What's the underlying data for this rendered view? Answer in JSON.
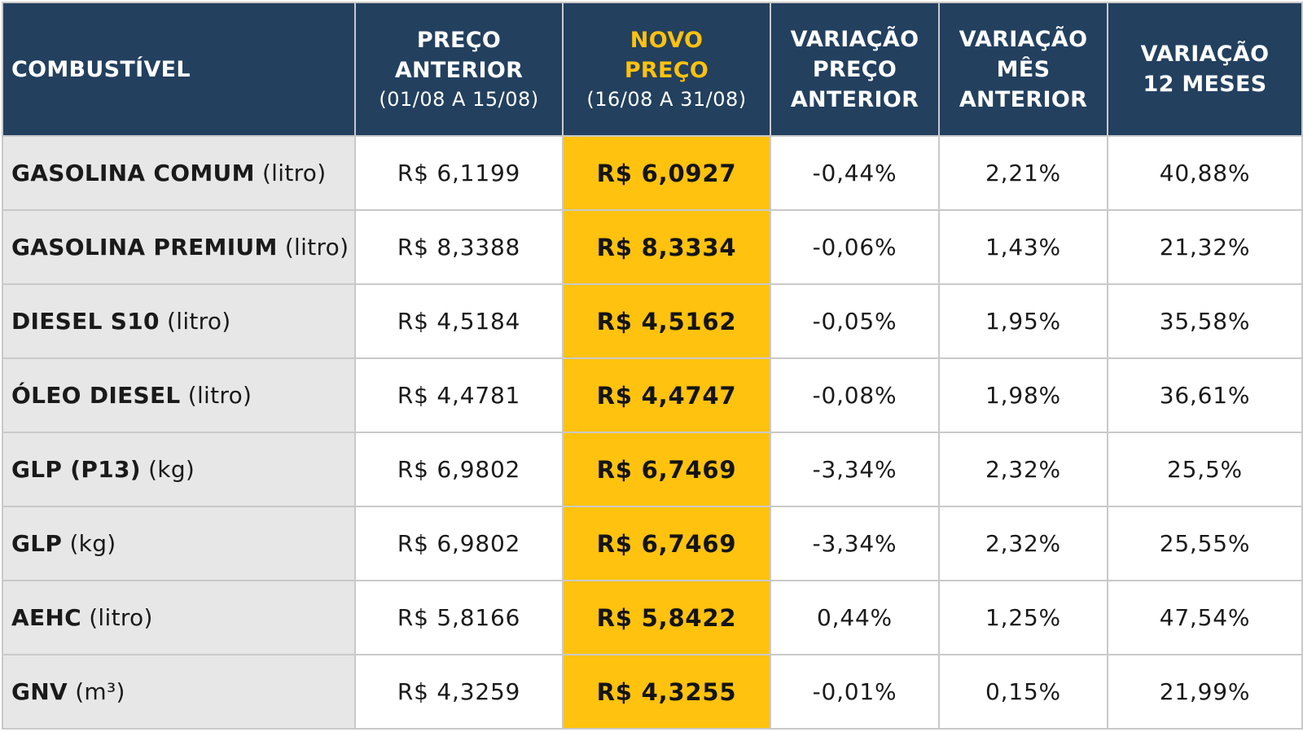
{
  "table": {
    "headers": {
      "fuel": "COMBUSTÍVEL",
      "previous_price": {
        "line1": "PREÇO",
        "line2": "ANTERIOR",
        "period": "(01/08 A 15/08)"
      },
      "new_price": {
        "line1": "NOVO",
        "line2": "PREÇO",
        "period": "(16/08 A 31/08)"
      },
      "var_previous_price": {
        "line1": "VARIAÇÃO",
        "line2": "PREÇO",
        "line3": "ANTERIOR"
      },
      "var_previous_month": {
        "line1": "VARIAÇÃO",
        "line2": "MÊS",
        "line3": "ANTERIOR"
      },
      "var_12_months": {
        "line1": "VARIAÇÃO",
        "line2": "12 MESES"
      }
    },
    "rows": [
      {
        "fuel": "GASOLINA COMUM",
        "unit": "(litro)",
        "previous_price": "R$ 6,1199",
        "new_price": "R$ 6,0927",
        "var_previous_price": "-0,44%",
        "var_previous_month": "2,21%",
        "var_12_months": "40,88%"
      },
      {
        "fuel": "GASOLINA PREMIUM",
        "unit": "(litro)",
        "previous_price": "R$ 8,3388",
        "new_price": "R$ 8,3334",
        "var_previous_price": "-0,06%",
        "var_previous_month": "1,43%",
        "var_12_months": "21,32%"
      },
      {
        "fuel": "DIESEL S10",
        "unit": "(litro)",
        "previous_price": "R$ 4,5184",
        "new_price": "R$ 4,5162",
        "var_previous_price": "-0,05%",
        "var_previous_month": "1,95%",
        "var_12_months": "35,58%"
      },
      {
        "fuel": "ÓLEO DIESEL",
        "unit": "(litro)",
        "previous_price": "R$ 4,4781",
        "new_price": "R$ 4,4747",
        "var_previous_price": "-0,08%",
        "var_previous_month": "1,98%",
        "var_12_months": "36,61%"
      },
      {
        "fuel": "GLP (P13)",
        "unit": "(kg)",
        "previous_price": "R$ 6,9802",
        "new_price": "R$ 6,7469",
        "var_previous_price": "-3,34%",
        "var_previous_month": "2,32%",
        "var_12_months": "25,5%"
      },
      {
        "fuel": "GLP",
        "unit": "(kg)",
        "previous_price": "R$ 6,9802",
        "new_price": "R$ 6,7469",
        "var_previous_price": "-3,34%",
        "var_previous_month": "2,32%",
        "var_12_months": "25,55%"
      },
      {
        "fuel": "AEHC",
        "unit": "(litro)",
        "previous_price": "R$ 5,8166",
        "new_price": "R$ 5,8422",
        "var_previous_price": "0,44%",
        "var_previous_month": "1,25%",
        "var_12_months": "47,54%"
      },
      {
        "fuel": "GNV",
        "unit": "(m³)",
        "previous_price": "R$ 4,3259",
        "new_price": "R$ 4,3255",
        "var_previous_price": "-0,01%",
        "var_previous_month": "0,15%",
        "var_12_months": "21,99%"
      }
    ]
  },
  "colors": {
    "header_bg": "#23405f",
    "header_text": "#ffffff",
    "new_price_header_text": "#ffc20e",
    "new_price_cell_bg": "#ffc20e",
    "fuel_cell_bg": "#e7e7e7",
    "grid": "#c9c9c9"
  }
}
